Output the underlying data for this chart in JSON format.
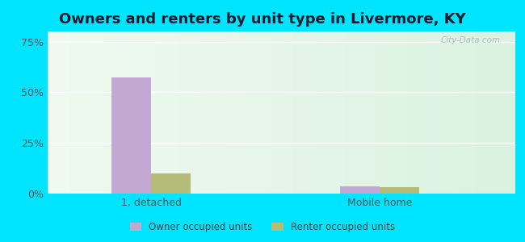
{
  "title": "Owners and renters by unit type in Livermore, KY",
  "categories": [
    "1, detached",
    "Mobile home"
  ],
  "owner_values": [
    57.5,
    3.5
  ],
  "renter_values": [
    10.0,
    3.0
  ],
  "owner_color": "#c4a8d4",
  "renter_color": "#b5bc7a",
  "yticks": [
    0,
    25,
    50,
    75
  ],
  "ytick_labels": [
    "0%",
    "25%",
    "50%",
    "75%"
  ],
  "ylim": [
    0,
    80
  ],
  "bar_width": 0.38,
  "group_positions": [
    1.0,
    3.2
  ],
  "outer_bg": "#00e5ff",
  "watermark": "City-Data.com",
  "legend_owner": "Owner occupied units",
  "legend_renter": "Renter occupied units",
  "title_fontsize": 13,
  "tick_fontsize": 9,
  "xlim": [
    0.0,
    4.5
  ]
}
